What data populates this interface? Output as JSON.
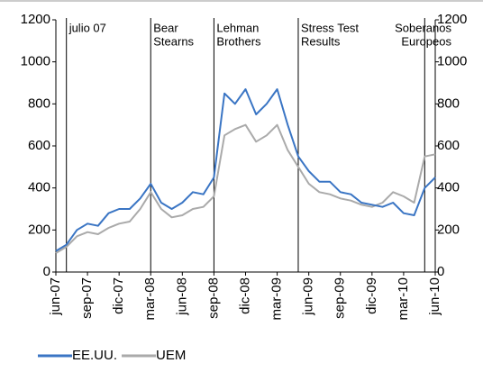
{
  "chart_data": {
    "type": "line",
    "x": [
      "2007-06",
      "2007-07",
      "2007-08",
      "2007-09",
      "2007-10",
      "2007-11",
      "2007-12",
      "2008-01",
      "2008-02",
      "2008-03",
      "2008-04",
      "2008-05",
      "2008-06",
      "2008-07",
      "2008-08",
      "2008-09",
      "2008-10",
      "2008-11",
      "2008-12",
      "2009-01",
      "2009-02",
      "2009-03",
      "2009-04",
      "2009-05",
      "2009-06",
      "2009-07",
      "2009-08",
      "2009-09",
      "2009-10",
      "2009-11",
      "2009-12",
      "2010-01",
      "2010-02",
      "2010-03",
      "2010-04",
      "2010-05",
      "2010-06"
    ],
    "series": [
      {
        "name": "EE.UU.",
        "color": "#3a75c4",
        "values": [
          100,
          130,
          200,
          230,
          220,
          280,
          300,
          300,
          350,
          420,
          330,
          300,
          330,
          380,
          370,
          450,
          850,
          800,
          870,
          750,
          800,
          870,
          700,
          550,
          480,
          430,
          430,
          380,
          370,
          330,
          320,
          310,
          330,
          280,
          270,
          400,
          450
        ]
      },
      {
        "name": "UEM",
        "color": "#aaaaaa",
        "values": [
          90,
          120,
          170,
          190,
          180,
          210,
          230,
          240,
          300,
          380,
          300,
          260,
          270,
          300,
          310,
          360,
          650,
          680,
          700,
          620,
          650,
          700,
          580,
          500,
          420,
          380,
          370,
          350,
          340,
          320,
          310,
          330,
          380,
          360,
          330,
          550,
          560
        ]
      }
    ],
    "xlim": [
      "2007-06",
      "2010-06"
    ],
    "xticks": [
      {
        "value": "2007-06",
        "label": "jun-07"
      },
      {
        "value": "2007-09",
        "label": "sep-07"
      },
      {
        "value": "2007-12",
        "label": "dic-07"
      },
      {
        "value": "2008-03",
        "label": "mar-08"
      },
      {
        "value": "2008-06",
        "label": "jun-08"
      },
      {
        "value": "2008-09",
        "label": "sep-08"
      },
      {
        "value": "2008-12",
        "label": "dic-08"
      },
      {
        "value": "2009-03",
        "label": "mar-09"
      },
      {
        "value": "2009-06",
        "label": "jun-09"
      },
      {
        "value": "2009-09",
        "label": "sep-09"
      },
      {
        "value": "2009-12",
        "label": "dic-09"
      },
      {
        "value": "2010-03",
        "label": "mar-10"
      },
      {
        "value": "2010-06",
        "label": "jun-10"
      }
    ],
    "ylim": [
      0,
      1200
    ],
    "yticks": [
      0,
      200,
      400,
      600,
      800,
      1000,
      1200
    ],
    "y2lim": [
      0,
      1200
    ],
    "y2ticks": [
      0,
      200,
      400,
      600,
      800,
      1000,
      1200
    ],
    "events": [
      {
        "x": "2007-07",
        "label": [
          "julio 07"
        ]
      },
      {
        "x": "2008-03",
        "label": [
          "Bear",
          "Stearns"
        ]
      },
      {
        "x": "2008-09",
        "label": [
          "Lehman",
          "Brothers"
        ]
      },
      {
        "x": "2009-05",
        "label": [
          "Stress Test",
          "Results"
        ]
      },
      {
        "x": "2010-05",
        "label": [
          "Soberanos",
          "Europeos"
        ]
      }
    ]
  }
}
